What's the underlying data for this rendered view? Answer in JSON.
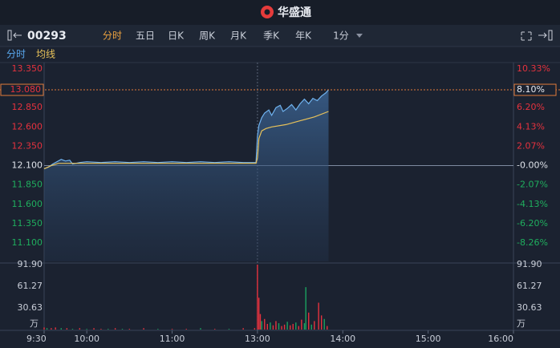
{
  "header": {
    "logo": "华盛通"
  },
  "toolbar": {
    "code": "00293",
    "tabs": [
      "分时",
      "五日",
      "日K",
      "周K",
      "月K",
      "季K",
      "年K",
      "1分"
    ],
    "active": 0
  },
  "sub_tabs": [
    "分时",
    "均线"
  ],
  "chart_data": [
    {
      "type": "line",
      "xlim": [
        0,
        330
      ],
      "ylim": [
        11.1,
        13.35
      ],
      "yticks": [
        {
          "value": 13.35,
          "label": "13.350"
        },
        {
          "value": 13.08,
          "label": "13.080"
        },
        {
          "value": 12.85,
          "label": "12.850"
        },
        {
          "value": 12.6,
          "label": "12.600"
        },
        {
          "value": 12.35,
          "label": "12.350"
        },
        {
          "value": 12.1,
          "label": "12.100"
        },
        {
          "value": 11.85,
          "label": "11.850"
        },
        {
          "value": 11.6,
          "label": "11.600"
        },
        {
          "value": 11.35,
          "label": "11.350"
        },
        {
          "value": 11.1,
          "label": "11.100"
        }
      ],
      "y2lim": [
        -8.26,
        10.33
      ],
      "y2ticks": [
        {
          "value": 10.33,
          "label": "10.33%"
        },
        {
          "value": 8.1,
          "label": "8.10%"
        },
        {
          "value": 6.2,
          "label": "6.20%"
        },
        {
          "value": 4.13,
          "label": "4.13%"
        },
        {
          "value": 2.07,
          "label": "2.07%"
        },
        {
          "value": 0,
          "label": "-0.00%"
        },
        {
          "value": -2.07,
          "label": "-2.07%"
        },
        {
          "value": -4.13,
          "label": "-4.13%"
        },
        {
          "value": -6.2,
          "label": "-6.20%"
        },
        {
          "value": -8.26,
          "label": "-8.26%"
        }
      ],
      "current_index": 1,
      "prev_close": 12.1,
      "break_x": 150,
      "series": [
        {
          "color": "#6fb2ee",
          "x": [
            0,
            3,
            6,
            9,
            12,
            15,
            18,
            20,
            25,
            30,
            40,
            50,
            60,
            70,
            80,
            90,
            100,
            110,
            120,
            130,
            140,
            149,
            150,
            151,
            153,
            155,
            158,
            160,
            163,
            166,
            168,
            171,
            174,
            177,
            180,
            183,
            186,
            189,
            192,
            195,
            198,
            200
          ],
          "values": [
            12.06,
            12.08,
            12.12,
            12.15,
            12.18,
            12.16,
            12.17,
            12.12,
            12.14,
            12.15,
            12.14,
            12.15,
            12.14,
            12.15,
            12.14,
            12.15,
            12.14,
            12.15,
            12.14,
            12.15,
            12.14,
            12.14,
            12.48,
            12.62,
            12.72,
            12.78,
            12.82,
            12.75,
            12.85,
            12.88,
            12.8,
            12.84,
            12.89,
            12.82,
            12.9,
            12.96,
            12.9,
            12.97,
            12.94,
            13.0,
            13.04,
            13.08
          ]
        },
        {
          "color": "#e8c25a",
          "x": [
            0,
            5,
            10,
            20,
            40,
            80,
            149,
            150,
            151,
            153,
            156,
            160,
            170,
            180,
            190,
            200
          ],
          "values": [
            12.06,
            12.1,
            12.13,
            12.13,
            12.13,
            12.13,
            12.13,
            12.2,
            12.45,
            12.55,
            12.58,
            12.6,
            12.63,
            12.68,
            12.73,
            12.8
          ]
        }
      ]
    },
    {
      "type": "bar",
      "xlim": [
        0,
        330
      ],
      "ylim": [
        0,
        91.9
      ],
      "yticks": [
        {
          "value": 91.9,
          "label": "91.90"
        },
        {
          "value": 61.27,
          "label": "61.27"
        },
        {
          "value": 30.63,
          "label": "30.63"
        }
      ],
      "unit": "万",
      "xticks": [
        {
          "value": 0,
          "label": "9:30"
        },
        {
          "value": 30,
          "label": "10:00"
        },
        {
          "value": 90,
          "label": "11:00"
        },
        {
          "value": 150,
          "label": "13:00"
        },
        {
          "value": 210,
          "label": "14:00"
        },
        {
          "value": 270,
          "label": "15:00"
        },
        {
          "value": 330,
          "label": "16:00"
        }
      ],
      "x": [
        0,
        2,
        5,
        8,
        12,
        16,
        20,
        25,
        30,
        35,
        40,
        45,
        50,
        55,
        60,
        70,
        80,
        90,
        100,
        110,
        120,
        130,
        140,
        148,
        150,
        151,
        152,
        153,
        155,
        157,
        159,
        161,
        163,
        165,
        167,
        169,
        171,
        173,
        175,
        177,
        179,
        181,
        183,
        184,
        186,
        188,
        190,
        193,
        195,
        197,
        199
      ],
      "values": [
        3,
        2,
        2,
        3,
        2,
        2,
        1,
        2,
        1,
        2,
        1,
        1,
        2,
        1,
        1,
        2,
        1,
        1,
        1,
        2,
        1,
        1,
        2,
        2,
        91.9,
        45,
        22,
        12,
        15,
        8,
        10,
        6,
        12,
        9,
        5,
        7,
        11,
        6,
        8,
        10,
        5,
        14,
        9,
        60,
        24,
        7,
        12,
        38,
        20,
        15,
        5
      ],
      "colors": [
        "#e5323e",
        "#1aa260",
        "#e5323e",
        "#e5323e",
        "#1aa260",
        "#e5323e",
        "#1aa260",
        "#e5323e",
        "#1aa260",
        "#e5323e",
        "#e5323e",
        "#1aa260",
        "#e5323e",
        "#1aa260",
        "#e5323e",
        "#e5323e",
        "#1aa260",
        "#e5323e",
        "#e5323e",
        "#1aa260",
        "#e5323e",
        "#1aa260",
        "#e5323e",
        "#e5323e",
        "#e5323e",
        "#e5323e",
        "#e5323e",
        "#1aa260",
        "#e5323e",
        "#e5323e",
        "#1aa260",
        "#e5323e",
        "#e5323e",
        "#1aa260",
        "#e5323e",
        "#e5323e",
        "#1aa260",
        "#e5323e",
        "#e5323e",
        "#1aa260",
        "#e5323e",
        "#e5323e",
        "#1aa260",
        "#1aa260",
        "#e5323e",
        "#1aa260",
        "#e5323e",
        "#e5323e",
        "#e5323e",
        "#1aa260",
        "#e5323e"
      ]
    }
  ]
}
